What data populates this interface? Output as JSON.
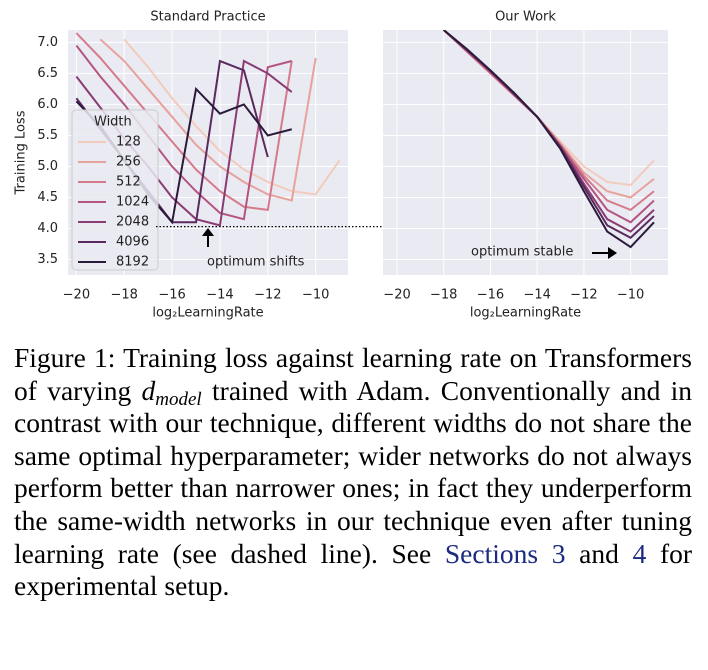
{
  "chart_data": [
    {
      "type": "line",
      "title": "Standard Practice",
      "xlabel": "log₂LearningRate",
      "ylabel": "Training Loss",
      "x": [
        -20,
        -19,
        -18,
        -17,
        -16,
        -15,
        -14,
        -13,
        -12,
        -11,
        -10,
        -9
      ],
      "series": [
        {
          "name": "128",
          "color": "#f2cbbd",
          "values": [
            null,
            null,
            7.05,
            6.6,
            6.1,
            5.65,
            5.25,
            4.95,
            4.75,
            4.6,
            4.55,
            5.1
          ]
        },
        {
          "name": "256",
          "color": "#e7a29c",
          "values": [
            null,
            7.05,
            6.7,
            6.25,
            5.8,
            5.35,
            5.0,
            4.75,
            4.55,
            4.45,
            6.75,
            null
          ]
        },
        {
          "name": "512",
          "color": "#d47a8b",
          "values": [
            7.15,
            6.75,
            6.3,
            5.85,
            5.4,
            4.95,
            4.6,
            4.35,
            4.3,
            6.7,
            null,
            null
          ]
        },
        {
          "name": "1024",
          "color": "#b35580",
          "values": [
            6.95,
            6.45,
            6.0,
            5.5,
            5.0,
            4.6,
            4.25,
            4.15,
            6.6,
            6.7,
            null,
            null
          ]
        },
        {
          "name": "2048",
          "color": "#893b73",
          "values": [
            6.45,
            5.95,
            5.45,
            5.0,
            4.5,
            4.15,
            4.05,
            6.7,
            6.5,
            6.2,
            null,
            null
          ]
        },
        {
          "name": "4096",
          "color": "#5a2a5e",
          "values": [
            6.1,
            5.6,
            5.1,
            4.6,
            4.1,
            4.1,
            6.7,
            6.55,
            5.15,
            null,
            null,
            null
          ]
        },
        {
          "name": "8192",
          "color": "#2b1b3b",
          "values": [
            6.05,
            5.65,
            5.1,
            4.55,
            4.1,
            6.25,
            5.85,
            6.0,
            5.5,
            5.6,
            null,
            null
          ]
        }
      ],
      "xlim": [
        -20.35,
        -8.65
      ],
      "ylim": [
        3.25,
        7.2
      ],
      "xticks": [
        {
          "value": -20,
          "label": "−20"
        },
        {
          "value": -18,
          "label": "−18"
        },
        {
          "value": -16,
          "label": "−16"
        },
        {
          "value": -14,
          "label": "−14"
        },
        {
          "value": -12,
          "label": "−12"
        },
        {
          "value": -10,
          "label": "−10"
        }
      ],
      "yticks": [
        3.5,
        {
          "value": 4,
          "label": "4.0"
        },
        4.5,
        {
          "value": 5,
          "label": "5.0"
        },
        5.5,
        {
          "value": 6,
          "label": "6.0"
        },
        6.5,
        {
          "value": 7,
          "label": "7.0"
        }
      ],
      "ytick_labels": true,
      "grid": true,
      "legend": "center left",
      "legend_title": "Width",
      "hline": 4.03,
      "annotation": "optimum shifts"
    },
    {
      "type": "line",
      "title": "Our Work",
      "xlabel": "log₂LearningRate",
      "x": [
        -20,
        -19,
        -18,
        -17,
        -16,
        -15,
        -14,
        -13,
        -12,
        -11,
        -10,
        -9
      ],
      "series": [
        {
          "name": "128",
          "color": "#f2cbbd",
          "values": [
            null,
            null,
            7.2,
            6.85,
            6.5,
            6.15,
            5.8,
            5.4,
            5.0,
            4.75,
            4.7,
            5.1
          ]
        },
        {
          "name": "256",
          "color": "#e7a29c",
          "values": [
            null,
            null,
            7.2,
            6.85,
            6.5,
            6.15,
            5.8,
            5.37,
            4.9,
            4.6,
            4.5,
            4.8
          ]
        },
        {
          "name": "512",
          "color": "#d47a8b",
          "values": [
            null,
            null,
            7.2,
            6.85,
            6.5,
            6.15,
            5.8,
            5.35,
            4.85,
            4.45,
            4.3,
            4.6
          ]
        },
        {
          "name": "1024",
          "color": "#b35580",
          "values": [
            null,
            null,
            7.2,
            6.86,
            6.52,
            6.16,
            5.8,
            5.33,
            4.8,
            4.3,
            4.1,
            4.45
          ]
        },
        {
          "name": "2048",
          "color": "#893b73",
          "values": [
            null,
            null,
            7.2,
            6.87,
            6.53,
            6.17,
            5.8,
            5.32,
            4.72,
            4.15,
            3.95,
            4.3
          ]
        },
        {
          "name": "4096",
          "color": "#5a2a5e",
          "values": [
            null,
            null,
            7.2,
            6.88,
            6.54,
            6.18,
            5.8,
            5.3,
            4.67,
            4.05,
            3.85,
            4.2
          ]
        },
        {
          "name": "8192",
          "color": "#2b1b3b",
          "values": [
            null,
            null,
            7.2,
            6.89,
            6.55,
            6.19,
            5.8,
            5.28,
            4.6,
            3.95,
            3.7,
            4.1
          ]
        }
      ],
      "xlim": [
        -20.6,
        -8.4
      ],
      "ylim": [
        3.25,
        7.2
      ],
      "xticks": [
        {
          "value": -20,
          "label": "−20"
        },
        {
          "value": -18,
          "label": "−18"
        },
        {
          "value": -16,
          "label": "−16"
        },
        {
          "value": -14,
          "label": "−14"
        },
        {
          "value": -12,
          "label": "−12"
        },
        {
          "value": -10,
          "label": "−10"
        }
      ],
      "yticks": [
        3.5,
        4,
        4.5,
        5,
        5.5,
        6,
        6.5,
        7
      ],
      "ytick_labels": false,
      "grid": true,
      "annotation": "optimum stable"
    }
  ],
  "caption": {
    "label": "Figure 1:",
    "text_1": "Training loss against learning rate on Transformers of varying",
    "math": "d",
    "math_sub": "model",
    "text_2": "trained with Adam. Conventionally and in contrast with our technique, different widths do not share the same optimal hy­perparameter; wider networks do not always per­form better than narrower ones; in fact they under­perform the same-width networks in our technique even after tuning learning rate (see dashed line). See",
    "link_1": "Sections 3",
    "text_3": "and",
    "link_2": "4",
    "text_4": "for experimental setup."
  }
}
